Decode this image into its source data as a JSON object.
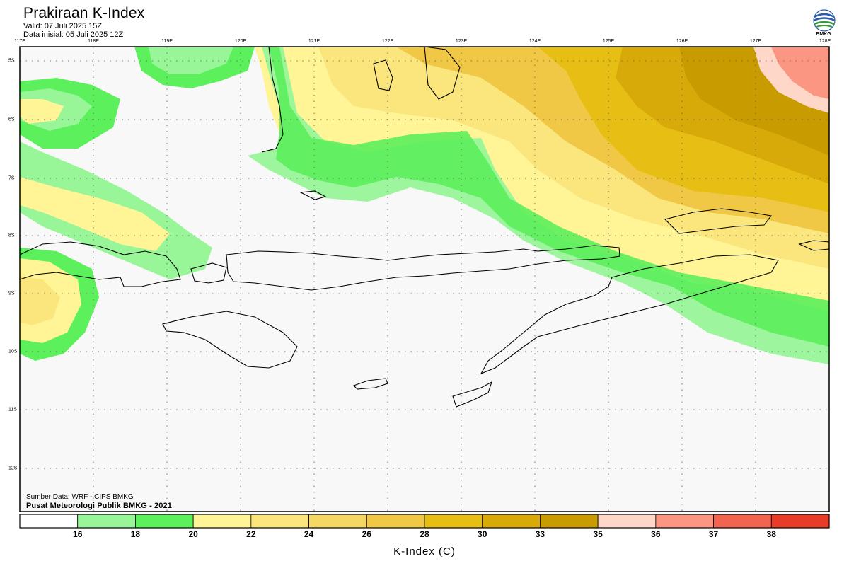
{
  "header": {
    "title": "Prakiraan K-Index",
    "valid": "Valid: 07 Juli 2025 15Z",
    "initial": "Data inisial: 05 Juli 2025 12Z"
  },
  "logo": {
    "icon": "bmkg-logo-icon",
    "text": "BMKG"
  },
  "map": {
    "lon_labels": [
      "117E",
      "118E",
      "119E",
      "120E",
      "121E",
      "122E",
      "123E",
      "124E",
      "125E",
      "126E",
      "127E",
      "128E"
    ],
    "lat_labels": [
      "5S",
      "6S",
      "7S",
      "8S",
      "9S",
      "10S",
      "11S",
      "12S"
    ],
    "lon_range": [
      117,
      128
    ],
    "lat_range": [
      -4.8,
      -12.8
    ],
    "gridlines": "dotted"
  },
  "credits": {
    "source": "Sumber Data: WRF - CIPS BMKG",
    "publisher": "Pusat Meteorologi Publik BMKG - 2021"
  },
  "colorbar": {
    "label": "K-Index (C)",
    "ticks": [
      "16",
      "18",
      "20",
      "22",
      "24",
      "26",
      "28",
      "30",
      "33",
      "35",
      "36",
      "37",
      "38"
    ],
    "colors": [
      "#ffffff",
      "#98f598",
      "#5cf05c",
      "#fff596",
      "#fae67d",
      "#f5d764",
      "#f0c846",
      "#e6be14",
      "#d7aa0a",
      "#c89b00",
      "#ffd7c8",
      "#fa9682",
      "#f06450",
      "#e63c28"
    ]
  }
}
